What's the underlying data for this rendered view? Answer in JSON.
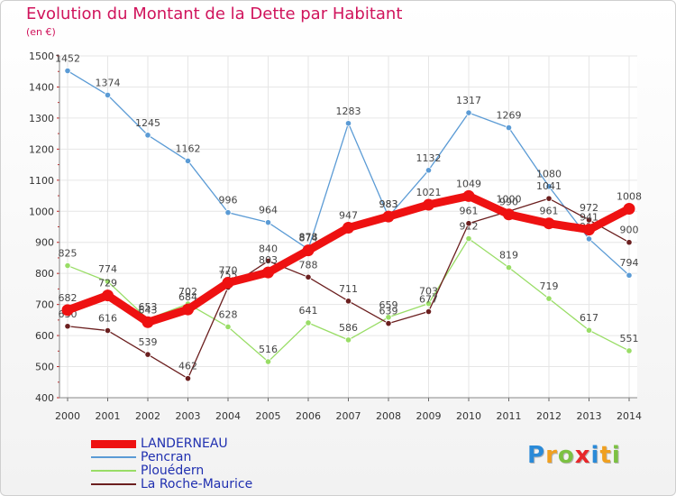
{
  "chart_data": {
    "type": "line",
    "title": "Evolution du Montant de la Dette par Habitant",
    "unit": "(en €)",
    "x": [
      "2000",
      "2001",
      "2002",
      "2003",
      "2004",
      "2005",
      "2006",
      "2007",
      "2008",
      "2009",
      "2010",
      "2011",
      "2012",
      "2013",
      "2014"
    ],
    "yticks": [
      400,
      500,
      600,
      700,
      800,
      900,
      1000,
      1100,
      1200,
      1300,
      1400,
      1500
    ],
    "ylim": [
      400,
      1500
    ],
    "grid": true,
    "legend_position": "bottom-left",
    "series": [
      {
        "name": "LANDERNEAU",
        "color": "#ee1111",
        "emphasis": true,
        "values": [
          682,
          729,
          643,
          684,
          770,
          803,
          874,
          947,
          983,
          1021,
          1049,
          990,
          961,
          941,
          1008
        ]
      },
      {
        "name": "Pencran",
        "color": "#5b9bd5",
        "emphasis": false,
        "values": [
          1452,
          1374,
          1245,
          1162,
          996,
          964,
          878,
          1283,
          983,
          1132,
          1317,
          1269,
          1080,
          911,
          794
        ]
      },
      {
        "name": "Plouédern",
        "color": "#99dd66",
        "emphasis": false,
        "values": [
          825,
          774,
          653,
          702,
          628,
          516,
          641,
          586,
          659,
          703,
          912,
          819,
          719,
          617,
          551
        ]
      },
      {
        "name": "La Roche-Maurice",
        "color": "#6b1f1f",
        "emphasis": false,
        "values": [
          630,
          616,
          539,
          462,
          755,
          840,
          788,
          711,
          639,
          677,
          961,
          1000,
          1041,
          972,
          900
        ]
      }
    ]
  },
  "branding": {
    "letters": [
      {
        "char": "P",
        "color": "#2a8ad8"
      },
      {
        "char": "r",
        "color": "#f0a020"
      },
      {
        "char": "o",
        "color": "#7cc142"
      },
      {
        "char": "x",
        "color": "#e8272a"
      },
      {
        "char": "i",
        "color": "#2a8ad8"
      },
      {
        "char": "t",
        "color": "#f0a020"
      },
      {
        "char": "i",
        "color": "#7cc142"
      }
    ]
  }
}
